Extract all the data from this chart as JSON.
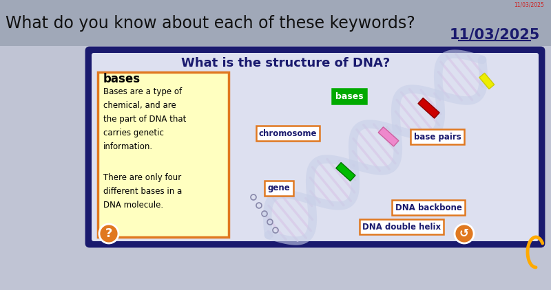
{
  "bg_top_color": "#a0a8b8",
  "bg_main_color": "#c0c4d4",
  "header_text": "What do you know about each of these keywords?",
  "date_small": "11/03/2025",
  "date_large": "11/03/2025",
  "panel_bg": "#1a1a6e",
  "panel_inner_bg": "#dde0f0",
  "panel_title": "What is the structure of DNA?",
  "box_bg": "#ffffc0",
  "box_border": "#e07820",
  "box_title": "bases",
  "box_text1": "Bases are a type of\nchemical, and are\nthe part of DNA that\ncarries genetic\ninformation.",
  "box_text2": "There are only four\ndifferent bases in a\nDNA molecule.",
  "label_bases": "bases",
  "label_chromosome": "chromosome",
  "label_base_pairs": "base pairs",
  "label_gene": "gene",
  "label_dna_backbone": "DNA backbone",
  "label_dna_double_helix": "DNA double helix",
  "green_label_bg": "#00aa00",
  "orange_border_color": "#e07820",
  "white_text": "#ffffff",
  "dark_text": "#1a1a6e",
  "black_text": "#000000",
  "tail_color": "#ffaa00",
  "footer_circle_color": "#e07820",
  "dna_strand_color": "#c8d0e8",
  "dna_rung_color": "#d8c8e8",
  "yellow_base": "#eeee00",
  "red_base": "#cc0000",
  "pink_base": "#ee88cc",
  "green_base": "#00bb00"
}
